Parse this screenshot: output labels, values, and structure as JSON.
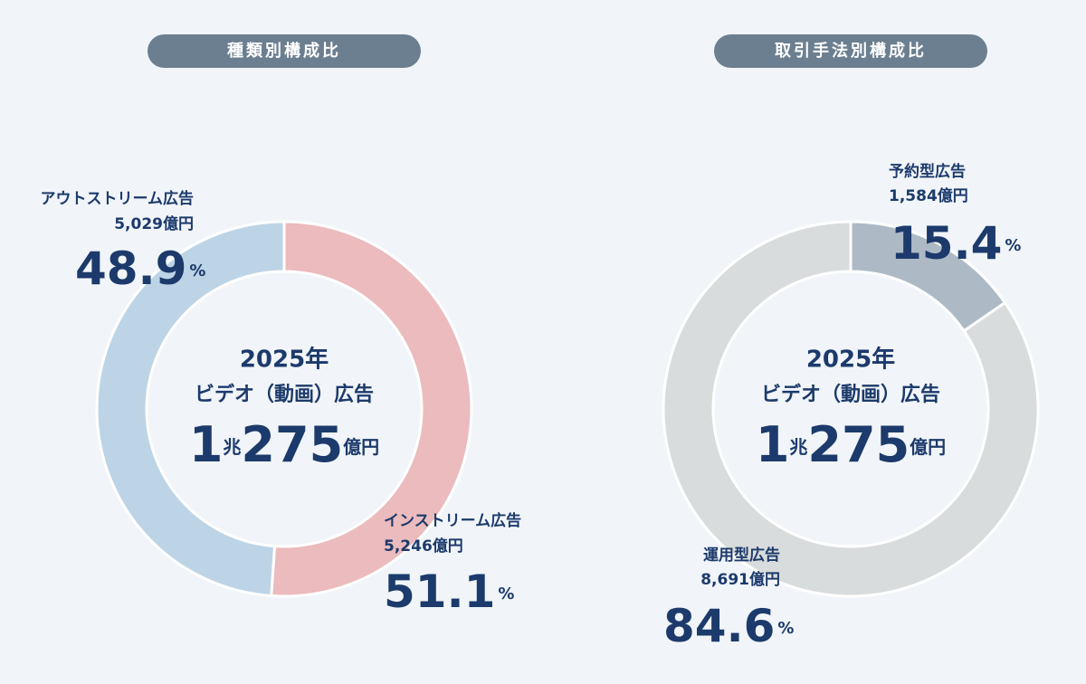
{
  "chart_data": [
    {
      "type": "donut",
      "title": "種類別構成比",
      "center_lines": [
        "2025年",
        "ビデオ（動画）広告"
      ],
      "total_parts": [
        "1",
        "兆",
        "275",
        "億円"
      ],
      "categories": [
        "インストリーム広告",
        "アウトストリーム広告"
      ],
      "amounts": [
        "5,246億円",
        "5,029億円"
      ],
      "values": [
        51.1,
        48.9
      ],
      "value_unit": "%",
      "colors": [
        "#ebbbbd",
        "#bcd4e6"
      ]
    },
    {
      "type": "donut",
      "title": "取引手法別構成比",
      "center_lines": [
        "2025年",
        "ビデオ（動画）広告"
      ],
      "total_parts": [
        "1",
        "兆",
        "275",
        "億円"
      ],
      "categories": [
        "予約型広告",
        "運用型広告"
      ],
      "amounts": [
        "1,584億円",
        "8,691億円"
      ],
      "values": [
        15.4,
        84.6
      ],
      "value_unit": "%",
      "colors": [
        "#adbac6",
        "#d9dcdc"
      ]
    }
  ]
}
